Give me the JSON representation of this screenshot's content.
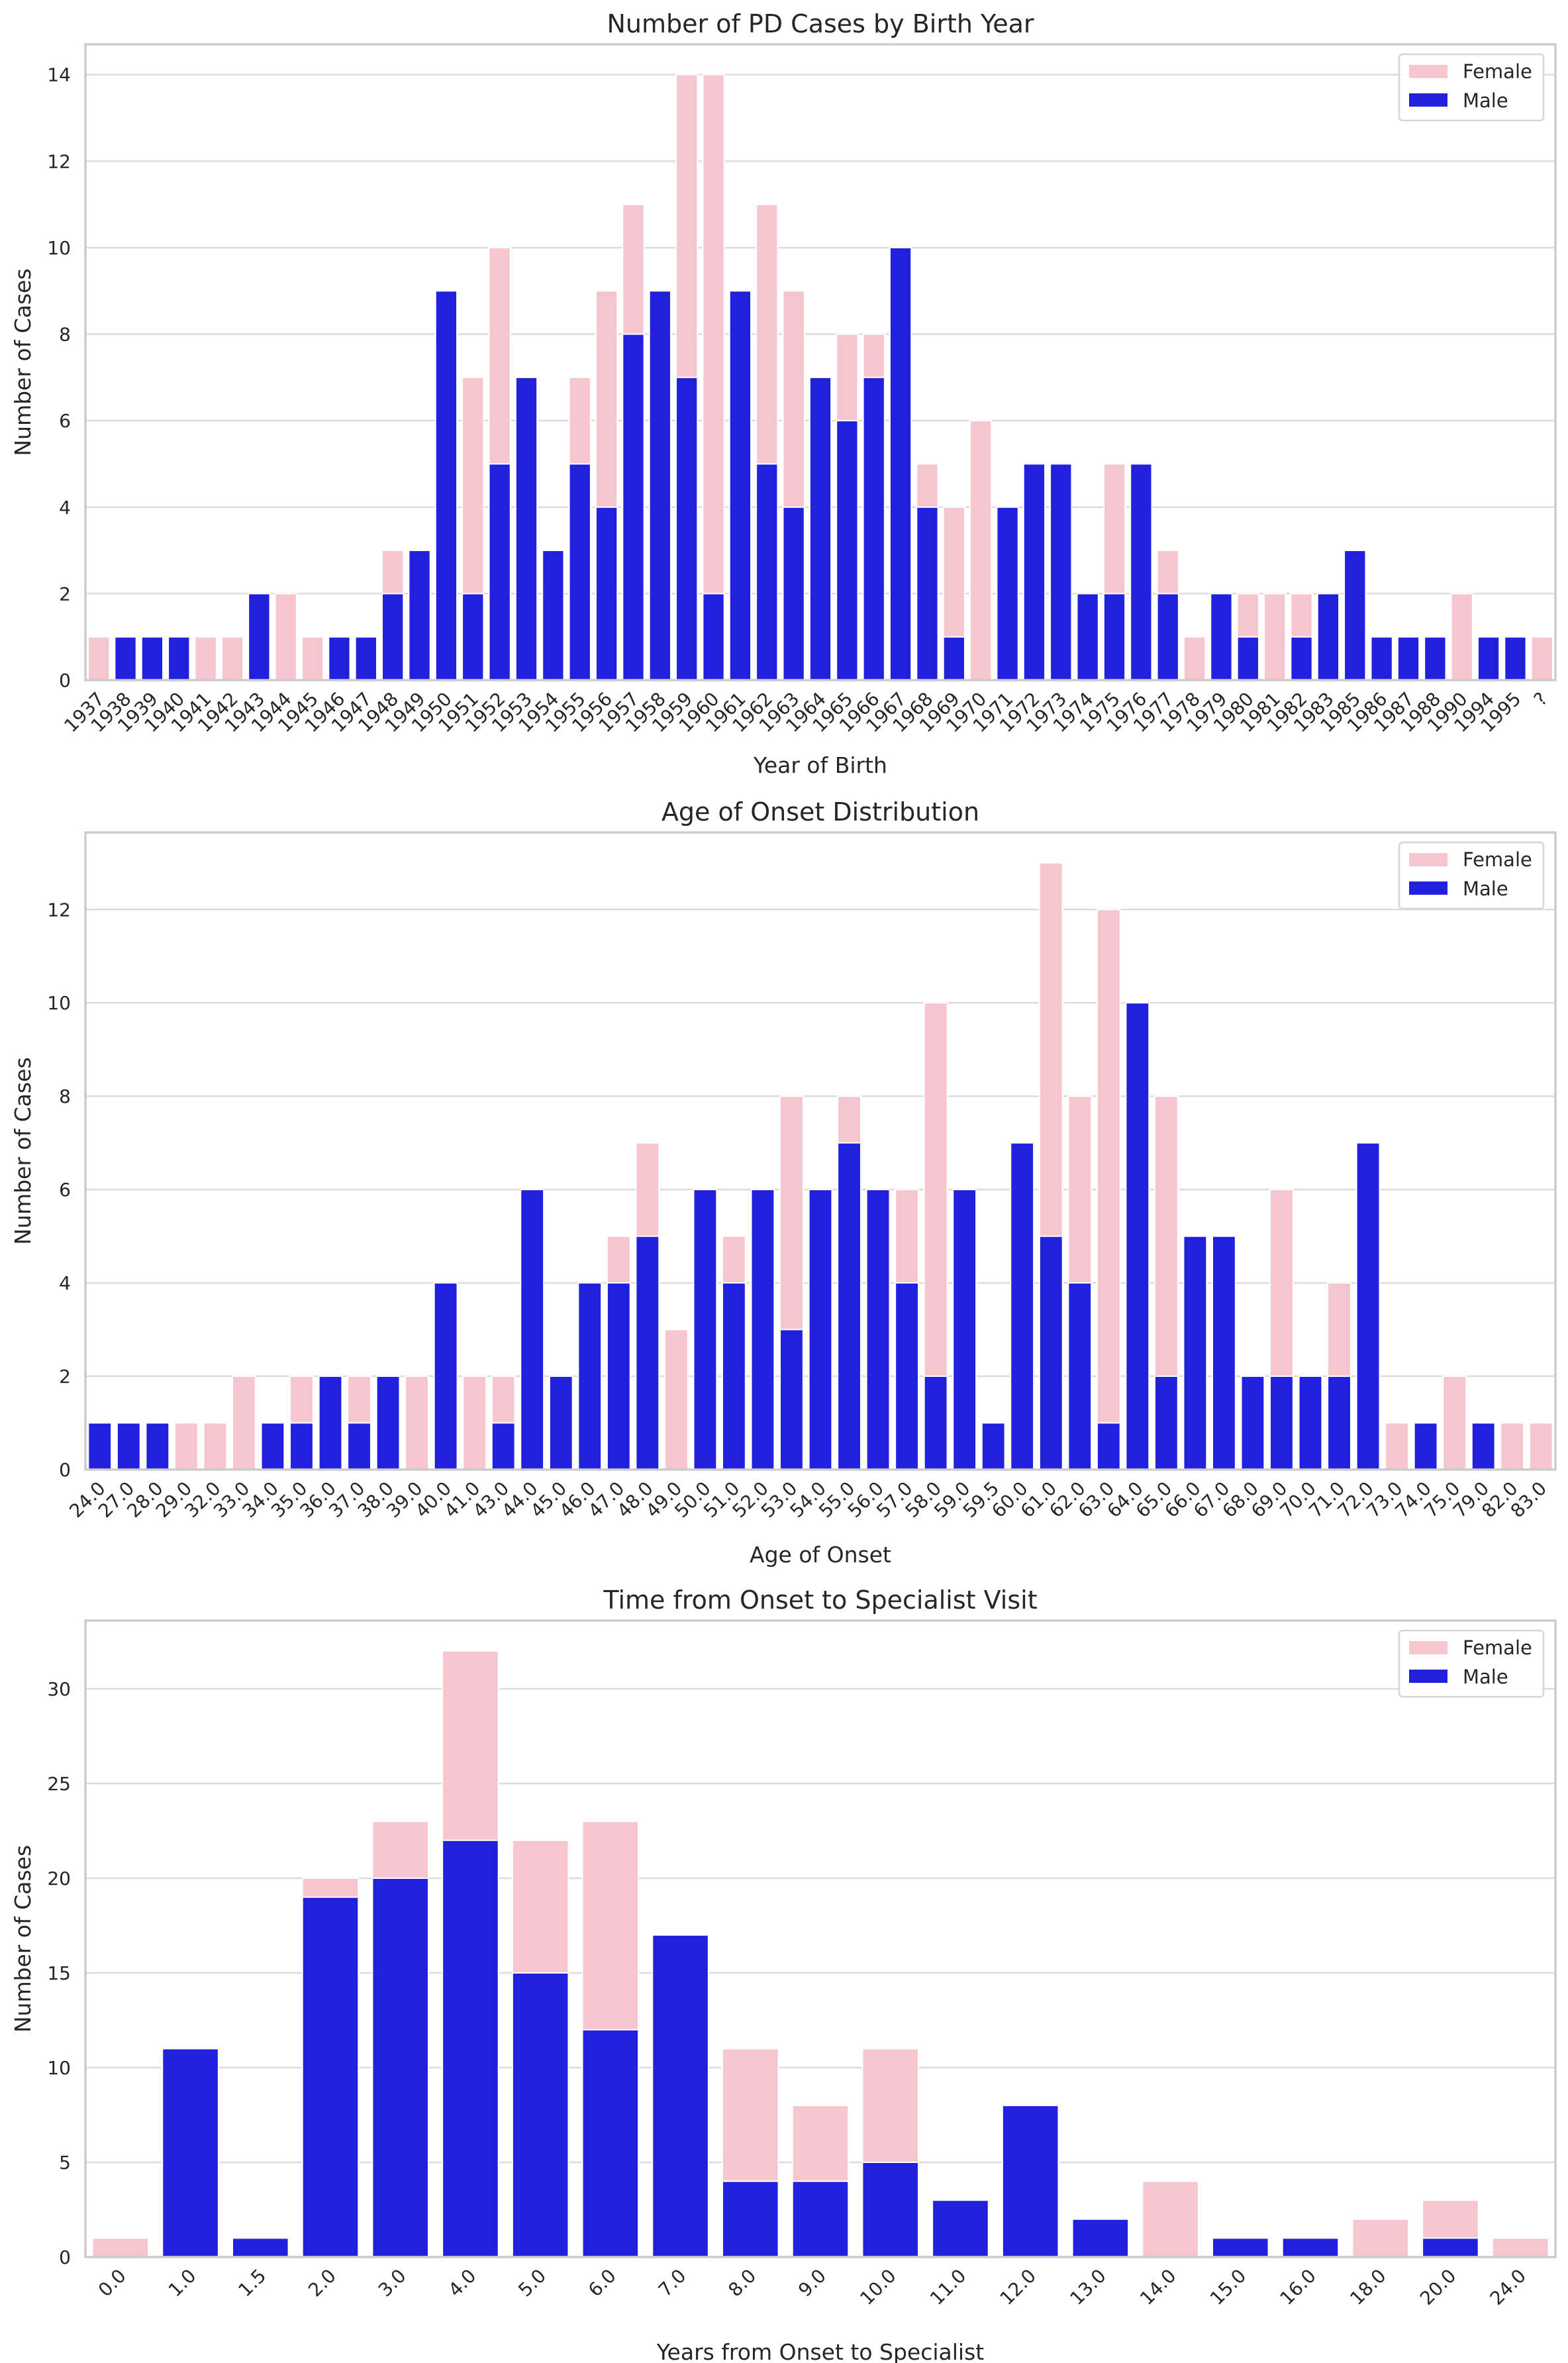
{
  "colors": {
    "female": "#f6c6ce",
    "male": "#2020dd"
  },
  "chart_data": [
    {
      "type": "bar",
      "mode": "overlay",
      "title": "Number of PD Cases by Birth Year",
      "xlabel": "Year of Birth",
      "ylabel": "Number of Cases",
      "ylim": [
        0,
        14.7
      ],
      "yticks": [
        0,
        2,
        4,
        6,
        8,
        10,
        12,
        14
      ],
      "grid": true,
      "legend": {
        "position": "top-right",
        "entries": [
          "Female",
          "Male"
        ]
      },
      "categories": [
        "1937",
        "1938",
        "1939",
        "1940",
        "1941",
        "1942",
        "1943",
        "1944",
        "1945",
        "1946",
        "1947",
        "1948",
        "1949",
        "1950",
        "1951",
        "1952",
        "1953",
        "1954",
        "1955",
        "1956",
        "1957",
        "1958",
        "1959",
        "1960",
        "1961",
        "1962",
        "1963",
        "1964",
        "1965",
        "1966",
        "1967",
        "1968",
        "1969",
        "1970",
        "1971",
        "1972",
        "1973",
        "1974",
        "1975",
        "1976",
        "1977",
        "1978",
        "1979",
        "1980",
        "1981",
        "1982",
        "1983",
        "1985",
        "1986",
        "1987",
        "1988",
        "1990",
        "1994",
        "1995",
        "?"
      ],
      "series": [
        {
          "name": "Female",
          "values": [
            1,
            0,
            0,
            0,
            1,
            1,
            0,
            2,
            1,
            0,
            0,
            3,
            0,
            0,
            7,
            10,
            0,
            0,
            7,
            9,
            11,
            0,
            14,
            14,
            0,
            11,
            9,
            0,
            8,
            8,
            0,
            5,
            4,
            6,
            0,
            0,
            0,
            0,
            5,
            0,
            3,
            1,
            0,
            2,
            2,
            2,
            0,
            0,
            0,
            0,
            0,
            2,
            0,
            0,
            1
          ]
        },
        {
          "name": "Male",
          "values": [
            0,
            1,
            1,
            1,
            0,
            0,
            2,
            0,
            0,
            1,
            1,
            2,
            3,
            9,
            2,
            5,
            7,
            3,
            5,
            4,
            8,
            9,
            7,
            2,
            9,
            5,
            4,
            7,
            6,
            7,
            10,
            4,
            1,
            0,
            4,
            5,
            5,
            2,
            2,
            5,
            2,
            0,
            2,
            1,
            0,
            1,
            2,
            3,
            1,
            1,
            1,
            0,
            1,
            1,
            0
          ]
        }
      ]
    },
    {
      "type": "bar",
      "mode": "overlay",
      "title": "Age of Onset Distribution",
      "xlabel": "Age of Onset",
      "ylabel": "Number of Cases",
      "ylim": [
        0,
        13.65
      ],
      "yticks": [
        0,
        2,
        4,
        6,
        8,
        10,
        12
      ],
      "grid": true,
      "legend": {
        "position": "top-right",
        "entries": [
          "Female",
          "Male"
        ]
      },
      "categories": [
        "24.0",
        "27.0",
        "28.0",
        "29.0",
        "32.0",
        "33.0",
        "34.0",
        "35.0",
        "36.0",
        "37.0",
        "38.0",
        "39.0",
        "40.0",
        "41.0",
        "43.0",
        "44.0",
        "45.0",
        "46.0",
        "47.0",
        "48.0",
        "49.0",
        "50.0",
        "51.0",
        "52.0",
        "53.0",
        "54.0",
        "55.0",
        "56.0",
        "57.0",
        "58.0",
        "59.0",
        "59.5",
        "60.0",
        "61.0",
        "62.0",
        "63.0",
        "64.0",
        "65.0",
        "66.0",
        "67.0",
        "68.0",
        "69.0",
        "70.0",
        "71.0",
        "72.0",
        "73.0",
        "74.0",
        "75.0",
        "79.0",
        "82.0",
        "83.0"
      ],
      "series": [
        {
          "name": "Female",
          "values": [
            0,
            0,
            0,
            1,
            1,
            2,
            0,
            2,
            0,
            2,
            0,
            2,
            0,
            2,
            2,
            0,
            0,
            0,
            5,
            7,
            3,
            0,
            5,
            0,
            8,
            0,
            8,
            0,
            6,
            10,
            0,
            0,
            0,
            13,
            8,
            12,
            0,
            8,
            0,
            0,
            0,
            6,
            0,
            4,
            0,
            1,
            0,
            2,
            0,
            1,
            1
          ]
        },
        {
          "name": "Male",
          "values": [
            1,
            1,
            1,
            0,
            0,
            0,
            1,
            1,
            2,
            1,
            2,
            0,
            4,
            0,
            1,
            6,
            2,
            4,
            4,
            5,
            0,
            6,
            4,
            6,
            3,
            6,
            7,
            6,
            4,
            2,
            6,
            1,
            7,
            5,
            4,
            1,
            10,
            2,
            5,
            5,
            2,
            2,
            2,
            2,
            7,
            0,
            1,
            0,
            1,
            0,
            0
          ]
        }
      ]
    },
    {
      "type": "bar",
      "mode": "overlay",
      "title": "Time from Onset to Specialist Visit",
      "xlabel": "Years from Onset to Specialist",
      "ylabel": "Number of Cases",
      "ylim": [
        0,
        33.6
      ],
      "yticks": [
        0,
        5,
        10,
        15,
        20,
        25,
        30
      ],
      "grid": true,
      "legend": {
        "position": "top-right",
        "entries": [
          "Female",
          "Male"
        ]
      },
      "categories": [
        "0.0",
        "1.0",
        "1.5",
        "2.0",
        "3.0",
        "4.0",
        "5.0",
        "6.0",
        "7.0",
        "8.0",
        "9.0",
        "10.0",
        "11.0",
        "12.0",
        "13.0",
        "14.0",
        "15.0",
        "16.0",
        "18.0",
        "20.0",
        "24.0"
      ],
      "series": [
        {
          "name": "Female",
          "values": [
            1,
            0,
            0,
            20,
            23,
            32,
            22,
            23,
            0,
            11,
            8,
            11,
            0,
            0,
            0,
            4,
            0,
            0,
            2,
            3,
            1
          ]
        },
        {
          "name": "Male",
          "values": [
            0,
            11,
            1,
            19,
            20,
            22,
            15,
            12,
            17,
            4,
            4,
            5,
            3,
            8,
            2,
            0,
            1,
            1,
            0,
            1,
            0
          ]
        }
      ]
    }
  ]
}
